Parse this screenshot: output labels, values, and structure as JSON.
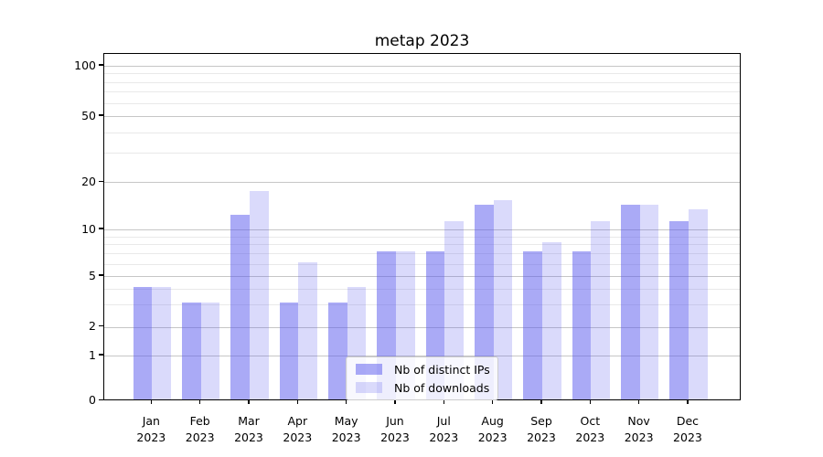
{
  "title": "metap 2023",
  "chart_data": {
    "type": "bar",
    "title": "metap 2023",
    "x_months": [
      "Jan",
      "Feb",
      "Mar",
      "Apr",
      "May",
      "Jun",
      "Jul",
      "Aug",
      "Sep",
      "Oct",
      "Nov",
      "Dec"
    ],
    "x_year": "2023",
    "series": [
      {
        "name": "Nb of distinct IPs",
        "color": "#5555ee",
        "alpha": 0.5,
        "values": [
          4,
          3,
          12,
          3,
          3,
          7,
          7,
          14,
          7,
          7,
          14,
          11
        ]
      },
      {
        "name": "Nb of downloads",
        "color": "#5555ee",
        "alpha": 0.22,
        "values": [
          4,
          3,
          17,
          6,
          4,
          7,
          11,
          15,
          8,
          11,
          14,
          13
        ]
      }
    ],
    "yscale": "symlog",
    "ylim": [
      0,
      115
    ],
    "ytick_labels": [
      100,
      50,
      20,
      10,
      5,
      2,
      1,
      0
    ],
    "yticks_minor": [
      3,
      4,
      6,
      7,
      8,
      9,
      30,
      40,
      60,
      70,
      80,
      90
    ],
    "grid": "both",
    "legend_position": "lower center"
  },
  "colors": {
    "bar_ips_composite": "#aaaaf8",
    "bar_downloads_composite": "#d8d8fa",
    "grid_major": "#c6c6c6",
    "grid_minor": "#e9e9e9",
    "axis": "#000000",
    "legend_border": "#cccccc",
    "background": "#ffffff"
  }
}
